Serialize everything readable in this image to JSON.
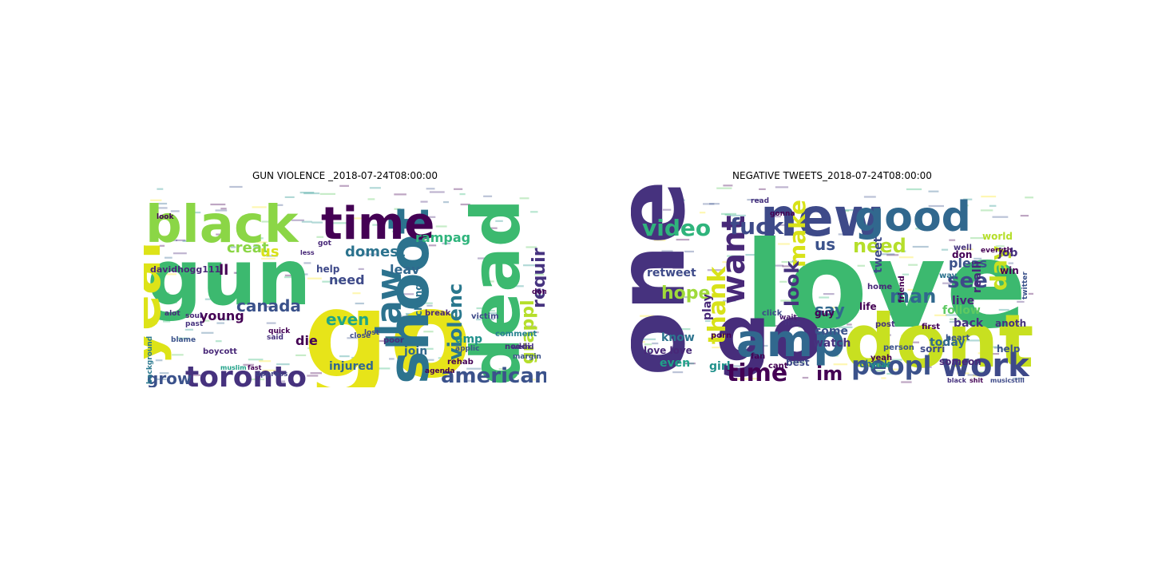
{
  "figure": {
    "panels": [
      {
        "title": "GUN VIOLENCE _2018-07-24T08:00:00",
        "words": [
          {
            "text": "gun",
            "color": "#3cb96f"
          },
          {
            "text": "go",
            "color": "#e7e419"
          },
          {
            "text": "black",
            "color": "#8bd646"
          },
          {
            "text": "year",
            "color": "#dde318"
          },
          {
            "text": "dead",
            "color": "#3cb96f"
          },
          {
            "text": "shoot",
            "color": "#2c738e"
          },
          {
            "text": "time",
            "color": "#440154"
          },
          {
            "text": "law",
            "color": "#2c728e"
          },
          {
            "text": "toronto",
            "color": "#46327e"
          },
          {
            "text": "american",
            "color": "#3b528b"
          },
          {
            "text": "violenc",
            "color": "#2a788e"
          },
          {
            "text": "grappl",
            "color": "#b5de2b"
          },
          {
            "text": "requir",
            "color": "#46337f"
          },
          {
            "text": "rampag",
            "color": "#2fb47c"
          },
          {
            "text": "domest",
            "color": "#2c738e"
          },
          {
            "text": "canada",
            "color": "#3b528b"
          },
          {
            "text": "grow",
            "color": "#3b528b"
          },
          {
            "text": "even",
            "color": "#21a585"
          },
          {
            "text": "leav",
            "color": "#31688e"
          },
          {
            "text": "creat",
            "color": "#8bd646"
          },
          {
            "text": "us",
            "color": "#d8e219"
          },
          {
            "text": "ll",
            "color": "#440154"
          },
          {
            "text": "need",
            "color": "#3e4a89"
          },
          {
            "text": "young",
            "color": "#440154"
          },
          {
            "text": "die",
            "color": "#440154"
          },
          {
            "text": "amp",
            "color": "#21918c"
          },
          {
            "text": "join",
            "color": "#31688e"
          },
          {
            "text": "injured",
            "color": "#31688e"
          },
          {
            "text": "help",
            "color": "#3e4989"
          },
          {
            "text": "change",
            "color": "#2c728e"
          },
          {
            "text": "break",
            "color": "#482878"
          },
          {
            "text": "davidhogg111",
            "color": "#482878"
          },
          {
            "text": "victim",
            "color": "#3e4a89"
          },
          {
            "text": "rehab",
            "color": "#440154"
          },
          {
            "text": "boycott",
            "color": "#482878"
          },
          {
            "text": "comment",
            "color": "#26828e"
          },
          {
            "text": "noddi",
            "color": "#472d7b"
          },
          {
            "text": "applic",
            "color": "#3b528b"
          },
          {
            "text": "agenda",
            "color": "#440154"
          },
          {
            "text": "poor",
            "color": "#472d7b"
          },
          {
            "text": "got",
            "color": "#482878"
          },
          {
            "text": "blame",
            "color": "#3b528b"
          },
          {
            "text": "alot",
            "color": "#472d7b"
          },
          {
            "text": "soul",
            "color": "#482878"
          },
          {
            "text": "past",
            "color": "#46327e"
          },
          {
            "text": "lost",
            "color": "#3e4a89"
          },
          {
            "text": "oppress",
            "color": "#414487"
          },
          {
            "text": "muslim",
            "color": "#1fa188"
          },
          {
            "text": "fast",
            "color": "#440154"
          },
          {
            "text": "done",
            "color": "#440154"
          },
          {
            "text": "margin",
            "color": "#3b528b"
          },
          {
            "text": "weird",
            "color": "#46327e"
          },
          {
            "text": "background",
            "color": "#2a788e"
          },
          {
            "text": "look",
            "color": "#440154"
          },
          {
            "text": "less",
            "color": "#482878"
          },
          {
            "text": "quick",
            "color": "#440154"
          },
          {
            "text": "said",
            "color": "#46327e"
          },
          {
            "text": "close",
            "color": "#3e4a89"
          }
        ]
      },
      {
        "title": "NEGATIVE TWEETS_2018-07-24T08:00:00",
        "words": [
          {
            "text": "love",
            "color": "#3cb96f"
          },
          {
            "text": "one",
            "color": "#46327e"
          },
          {
            "text": "go",
            "color": "#472d7b"
          },
          {
            "text": "dont",
            "color": "#c8e020"
          },
          {
            "text": "new",
            "color": "#3e4a89"
          },
          {
            "text": "good",
            "color": "#31688e"
          },
          {
            "text": "amp",
            "color": "#31688e"
          },
          {
            "text": "want",
            "color": "#482878"
          },
          {
            "text": "work",
            "color": "#3e4989"
          },
          {
            "text": "peopl",
            "color": "#3b528b"
          },
          {
            "text": "thank",
            "color": "#d8e219"
          },
          {
            "text": "time",
            "color": "#440154"
          },
          {
            "text": "fuck",
            "color": "#3e4a89"
          },
          {
            "text": "video",
            "color": "#2fb47c"
          },
          {
            "text": "need",
            "color": "#b5de2b"
          },
          {
            "text": "make",
            "color": "#d8e219"
          },
          {
            "text": "day",
            "color": "#c8e020"
          },
          {
            "text": "look",
            "color": "#46327e"
          },
          {
            "text": "im",
            "color": "#440154"
          },
          {
            "text": "see",
            "color": "#3e4a89"
          },
          {
            "text": "man",
            "color": "#31688e"
          },
          {
            "text": "hope",
            "color": "#9fda3a"
          },
          {
            "text": "us",
            "color": "#3b528b"
          },
          {
            "text": "say",
            "color": "#31688e"
          },
          {
            "text": "pleas",
            "color": "#3b528b"
          },
          {
            "text": "retweet",
            "color": "#3e4a89"
          },
          {
            "text": "play",
            "color": "#482878"
          },
          {
            "text": "follow",
            "color": "#5ec962"
          },
          {
            "text": "back",
            "color": "#46327e"
          },
          {
            "text": "know",
            "color": "#2c738e"
          },
          {
            "text": "watch",
            "color": "#46327e"
          },
          {
            "text": "even",
            "color": "#1fa188"
          },
          {
            "text": "girl",
            "color": "#21918c"
          },
          {
            "text": "today",
            "color": "#31688e"
          },
          {
            "text": "realli",
            "color": "#482878"
          },
          {
            "text": "tweet",
            "color": "#3e4a89"
          },
          {
            "text": "live",
            "color": "#482878"
          },
          {
            "text": "come",
            "color": "#3b528b"
          },
          {
            "text": "life",
            "color": "#440154"
          },
          {
            "text": "someon",
            "color": "#482878"
          },
          {
            "text": "check",
            "color": "#31688e"
          },
          {
            "text": "best",
            "color": "#3e4989"
          },
          {
            "text": "love love",
            "color": "#482878"
          },
          {
            "text": "help",
            "color": "#3b528b"
          },
          {
            "text": "anoth",
            "color": "#46327e"
          },
          {
            "text": "sorri",
            "color": "#3e4a89"
          },
          {
            "text": "guy",
            "color": "#440154"
          },
          {
            "text": "don",
            "color": "#440154"
          },
          {
            "text": "world",
            "color": "#b5de2b"
          },
          {
            "text": "well",
            "color": "#46327e"
          },
          {
            "text": "job",
            "color": "#46327e"
          },
          {
            "text": "win",
            "color": "#440154"
          },
          {
            "text": "home",
            "color": "#482878"
          },
          {
            "text": "friend",
            "color": "#440154"
          },
          {
            "text": "way",
            "color": "#2c728e"
          },
          {
            "text": "post",
            "color": "#46327e"
          },
          {
            "text": "first",
            "color": "#440154"
          },
          {
            "text": "heart",
            "color": "#3b528b"
          },
          {
            "text": "fan",
            "color": "#440154"
          },
          {
            "text": "cant",
            "color": "#440154"
          },
          {
            "text": "yeah",
            "color": "#440154"
          },
          {
            "text": "year",
            "color": "#21918c"
          },
          {
            "text": "person",
            "color": "#3b528b"
          },
          {
            "text": "click",
            "color": "#3e4a89"
          },
          {
            "text": "porn",
            "color": "#440154"
          },
          {
            "text": "read",
            "color": "#46327e"
          },
          {
            "text": "gonna",
            "color": "#440154"
          },
          {
            "text": "wait",
            "color": "#481a6c"
          },
          {
            "text": "free",
            "color": "#46327e"
          },
          {
            "text": "twitter",
            "color": "#3b528b"
          },
          {
            "text": "everyth",
            "color": "#440154"
          },
          {
            "text": "music",
            "color": "#3e4a89"
          },
          {
            "text": "still",
            "color": "#3e4a89"
          },
          {
            "text": "black",
            "color": "#46327e"
          },
          {
            "text": "shit",
            "color": "#440154"
          }
        ]
      }
    ]
  }
}
